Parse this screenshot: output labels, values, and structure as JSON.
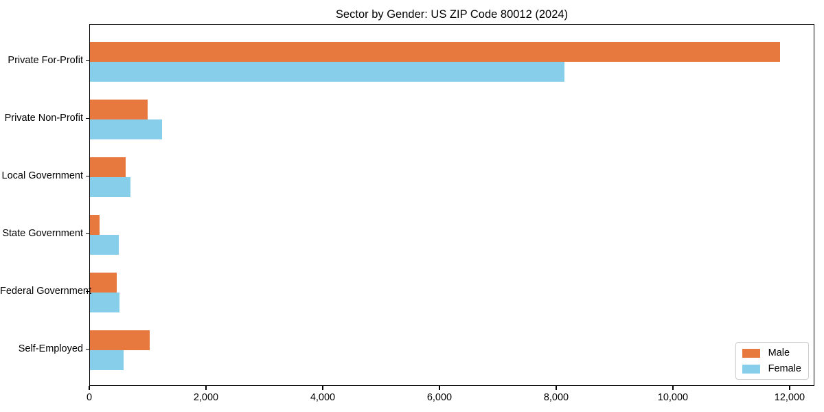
{
  "title": "Sector by Gender: US ZIP Code 80012 (2024)",
  "chart_data": {
    "type": "bar",
    "orientation": "horizontal",
    "title": "Sector by Gender: US ZIP Code 80012 (2024)",
    "categories": [
      "Private For-Profit",
      "Private Non-Profit",
      "Local Government",
      "State Government",
      "Federal Government",
      "Self-Employed"
    ],
    "series": [
      {
        "name": "Male",
        "color": "#E8793E",
        "values": [
          11820,
          990,
          610,
          165,
          460,
          1020
        ]
      },
      {
        "name": "Female",
        "color": "#87CEEB",
        "values": [
          8130,
          1235,
          695,
          500,
          510,
          575
        ]
      }
    ],
    "xlabel": "",
    "ylabel": "",
    "xlim": [
      0,
      12424
    ],
    "xticks": [
      0,
      2000,
      4000,
      6000,
      8000,
      10000,
      12000
    ],
    "xtick_labels": [
      "0",
      "2,000",
      "4,000",
      "6,000",
      "8,000",
      "10,000",
      "12,000"
    ],
    "grid": false,
    "legend": {
      "position": "lower right",
      "entries": [
        "Male",
        "Female"
      ]
    }
  }
}
